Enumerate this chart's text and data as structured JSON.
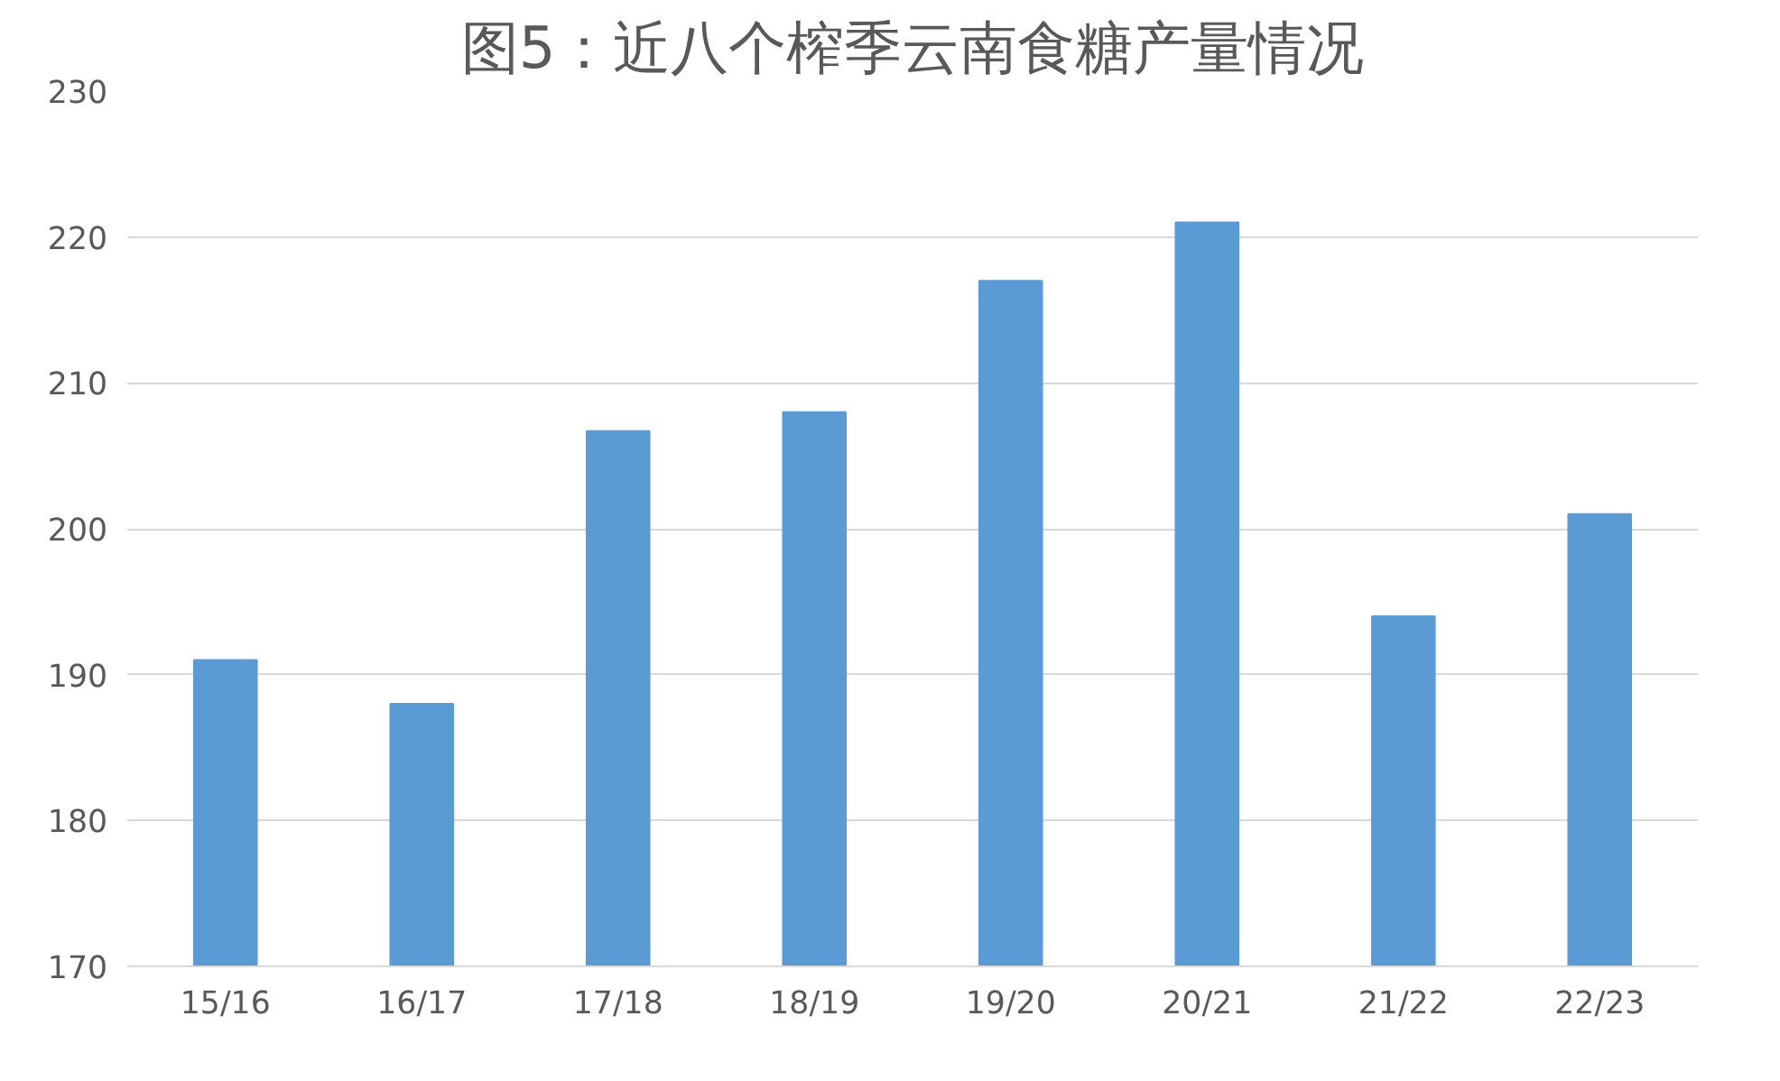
{
  "chart_data": {
    "type": "bar",
    "title": "图5：近八个榨季云南食糖产量情况",
    "categories": [
      "15/16",
      "16/17",
      "17/18",
      "18/19",
      "19/20",
      "20/21",
      "21/22",
      "22/23"
    ],
    "values": [
      191,
      188,
      206.7,
      208,
      217,
      221,
      194,
      201
    ],
    "color": "#5b9bd5",
    "ylim": [
      170,
      230
    ],
    "yticks": [
      170,
      180,
      190,
      200,
      210,
      220,
      230
    ],
    "grid": "y"
  }
}
